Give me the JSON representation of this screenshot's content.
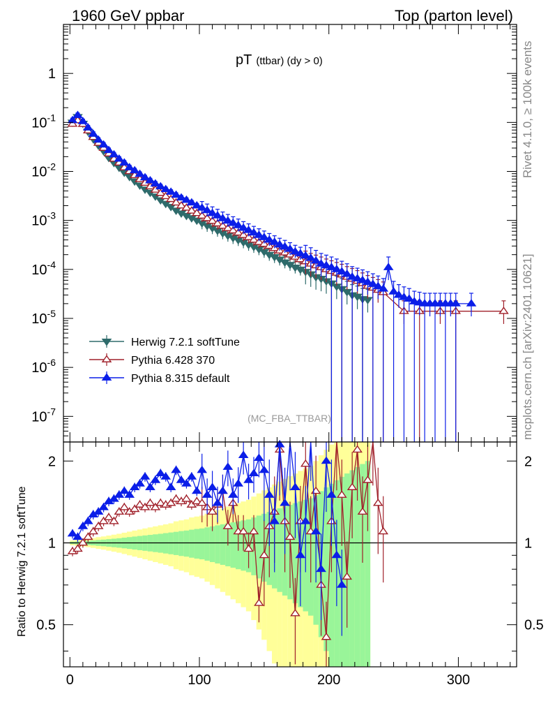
{
  "header": {
    "energy": "1960 GeV ppbar",
    "process": "Top (parton level)",
    "side_top": "Rivet 4.1.0, ≥ 100k events",
    "side_bottom": "mcplots.cern.ch [arXiv:2401.10621]"
  },
  "chart_data": [
    {
      "type": "line",
      "scale": "log",
      "title": "pT (ttbar) (dy > 0)",
      "title_main": "pT",
      "title_sub": "(ttbar) (dy > 0)",
      "analysis_tag": "(MC_FBA_TTBAR)",
      "ylim": [
        3e-08,
        10
      ],
      "xlim": [
        -5,
        345
      ],
      "y_tick_labels": [
        "1",
        "10^-1",
        "10^-2",
        "10^-3",
        "10^-4",
        "10^-5",
        "10^-6",
        "10^-7"
      ],
      "y_tick_values": [
        1,
        0.1,
        0.01,
        0.001,
        0.0001,
        1e-05,
        1e-06,
        1e-07
      ],
      "legend": [
        {
          "name": "Herwig 7.2.1 softTune",
          "color": "#2e6b6b",
          "marker": "triangle-down-filled"
        },
        {
          "name": "Pythia 6.428 370",
          "color": "#a0202a",
          "marker": "triangle-up-open"
        },
        {
          "name": "Pythia 8.315 default",
          "color": "#0b1ee8",
          "marker": "triangle-up-filled"
        }
      ],
      "series": [
        {
          "name": "Herwig 7.2.1 softTune",
          "color": "#2e6b6b",
          "x": [
            2,
            6,
            10,
            14,
            18,
            22,
            26,
            30,
            34,
            38,
            42,
            46,
            50,
            54,
            58,
            62,
            66,
            70,
            74,
            78,
            82,
            86,
            90,
            94,
            98,
            102,
            106,
            110,
            114,
            118,
            122,
            126,
            130,
            134,
            138,
            142,
            146,
            150,
            154,
            158,
            162,
            166,
            170,
            174,
            178,
            182,
            186,
            190,
            194,
            198,
            202,
            206,
            210,
            214,
            218,
            222,
            226,
            230
          ],
          "values": [
            0.1,
            0.13,
            0.095,
            0.065,
            0.046,
            0.034,
            0.026,
            0.019,
            0.015,
            0.012,
            0.0095,
            0.0078,
            0.0063,
            0.0052,
            0.0043,
            0.0037,
            0.0031,
            0.0026,
            0.0022,
            0.0019,
            0.0016,
            0.0014,
            0.00125,
            0.00112,
            0.001,
            0.00088,
            0.00078,
            0.0007,
            0.00062,
            0.00055,
            0.00049,
            0.00044,
            0.0004,
            0.00036,
            0.00032,
            0.00029,
            0.00026,
            0.00023,
            0.0002,
            0.00018,
            0.00016,
            0.00014,
            0.000125,
            0.00011,
            0.0001,
            9e-05,
            8e-05,
            7e-05,
            6.5e-05,
            5.8e-05,
            5.2e-05,
            4.5e-05,
            4e-05,
            3.5e-05,
            3e-05,
            2.8e-05,
            2.5e-05,
            2.4e-05
          ]
        },
        {
          "name": "Pythia 6.428 370",
          "color": "#a0202a",
          "x": [
            2,
            6,
            10,
            14,
            18,
            22,
            26,
            30,
            34,
            38,
            42,
            46,
            50,
            54,
            58,
            62,
            66,
            70,
            74,
            78,
            82,
            86,
            90,
            94,
            98,
            102,
            106,
            110,
            114,
            118,
            122,
            126,
            130,
            134,
            138,
            142,
            146,
            150,
            154,
            158,
            162,
            166,
            170,
            174,
            178,
            182,
            186,
            190,
            194,
            198,
            202,
            206,
            210,
            214,
            218,
            222,
            226,
            230,
            234,
            238,
            242,
            258,
            270,
            286,
            298,
            335
          ],
          "values": [
            0.093,
            0.11,
            0.092,
            0.068,
            0.05,
            0.038,
            0.03,
            0.023,
            0.018,
            0.015,
            0.012,
            0.01,
            0.0083,
            0.0069,
            0.0058,
            0.0049,
            0.0042,
            0.0036,
            0.0031,
            0.0027,
            0.0023,
            0.002,
            0.0018,
            0.00157,
            0.0014,
            0.00124,
            0.0011,
            0.00097,
            0.00086,
            0.00077,
            0.00069,
            0.00062,
            0.00056,
            0.0005,
            0.00045,
            0.0004,
            0.00036,
            0.00033,
            0.0003,
            0.00027,
            0.00024,
            0.00022,
            0.0002,
            0.00018,
            0.00016,
            0.000145,
            0.00013,
            0.00012,
            0.00011,
            0.0001,
            9.2e-05,
            8.5e-05,
            7.8e-05,
            7e-05,
            6.4e-05,
            5.8e-05,
            5.2e-05,
            4.6e-05,
            4.2e-05,
            3.8e-05,
            3.4e-05,
            1.4e-05,
            1.4e-05,
            1.4e-05,
            1.4e-05,
            1.4e-05
          ]
        },
        {
          "name": "Pythia 8.315 default",
          "color": "#0b1ee8",
          "x": [
            2,
            6,
            10,
            14,
            18,
            22,
            26,
            30,
            34,
            38,
            42,
            46,
            50,
            54,
            58,
            62,
            66,
            70,
            74,
            78,
            82,
            86,
            90,
            94,
            98,
            102,
            106,
            110,
            114,
            118,
            122,
            126,
            130,
            134,
            138,
            142,
            146,
            150,
            154,
            158,
            162,
            166,
            170,
            174,
            178,
            182,
            186,
            190,
            194,
            198,
            202,
            206,
            210,
            214,
            218,
            222,
            226,
            230,
            234,
            238,
            242,
            246,
            250,
            254,
            258,
            262,
            266,
            270,
            274,
            278,
            282,
            286,
            290,
            294,
            298,
            310
          ],
          "values": [
            0.11,
            0.14,
            0.105,
            0.078,
            0.058,
            0.044,
            0.035,
            0.027,
            0.022,
            0.018,
            0.015,
            0.012,
            0.0104,
            0.0088,
            0.0075,
            0.0065,
            0.0056,
            0.0049,
            0.0043,
            0.0038,
            0.0033,
            0.0029,
            0.0026,
            0.0023,
            0.002,
            0.0018,
            0.0016,
            0.0014,
            0.00125,
            0.0011,
            0.00098,
            0.00088,
            0.00079,
            0.0007,
            0.00063,
            0.00056,
            0.0005,
            0.00045,
            0.0004,
            0.00036,
            0.00032,
            0.00029,
            0.00026,
            0.00023,
            0.00021,
            0.00019,
            0.00017,
            0.00015,
            0.00013,
            0.00012,
            0.00011,
            0.0001,
            9e-05,
            8e-05,
            7e-05,
            6.5e-05,
            6e-05,
            5.5e-05,
            5e-05,
            4.5e-05,
            4e-05,
            0.00011,
            3.5e-05,
            3e-05,
            2.7e-05,
            2.5e-05,
            2.2e-05,
            2.1e-05,
            2e-05,
            2e-05,
            2e-05,
            2e-05,
            2e-05,
            2e-05,
            2e-05,
            2e-05
          ]
        }
      ]
    },
    {
      "type": "line",
      "scale": "log",
      "ylabel": "Ratio to Herwig 7.2.1 softTune",
      "ylim": [
        0.35,
        2.35
      ],
      "xlim": [
        -5,
        345
      ],
      "y_tick_labels": [
        "2",
        "1",
        "0.5"
      ],
      "y_tick_values": [
        2,
        1,
        0.5
      ],
      "x_tick_labels": [
        "0",
        "100",
        "200",
        "300"
      ],
      "x_tick_values": [
        0,
        100,
        200,
        300
      ],
      "reference": 1,
      "band_green_halfwidth": [
        0.01,
        0.012,
        0.015,
        0.018,
        0.021,
        0.025,
        0.028,
        0.032,
        0.036,
        0.04,
        0.045,
        0.05,
        0.055,
        0.06,
        0.065,
        0.07,
        0.075,
        0.08,
        0.086,
        0.092,
        0.098,
        0.105,
        0.11,
        0.118,
        0.125,
        0.13,
        0.14,
        0.15,
        0.16,
        0.17,
        0.18,
        0.19,
        0.2,
        0.21,
        0.22,
        0.24,
        0.26,
        0.28,
        0.3,
        0.32,
        0.34,
        0.36,
        0.38,
        0.4,
        0.42,
        0.44,
        0.46,
        0.5,
        0.55,
        0.6,
        0.65,
        0.7,
        0.75,
        0.8,
        0.85,
        0.9,
        0.95,
        1.0
      ],
      "band_yellow_halfwidth": [
        0.02,
        0.025,
        0.03,
        0.036,
        0.042,
        0.05,
        0.056,
        0.064,
        0.072,
        0.08,
        0.09,
        0.1,
        0.11,
        0.12,
        0.13,
        0.14,
        0.15,
        0.16,
        0.17,
        0.18,
        0.2,
        0.21,
        0.22,
        0.24,
        0.25,
        0.26,
        0.28,
        0.3,
        0.32,
        0.34,
        0.36,
        0.38,
        0.4,
        0.42,
        0.44,
        0.48,
        0.52,
        0.56,
        0.6,
        0.64,
        0.68,
        0.72,
        0.76,
        0.8,
        0.84,
        0.88,
        0.92,
        1.0,
        1.1,
        1.2,
        1.3,
        1.4,
        1.5,
        1.6,
        1.7,
        1.8,
        1.9,
        2.0
      ],
      "series": [
        {
          "name": "Pythia 6.428 370",
          "color": "#a0202a",
          "x": [
            2,
            6,
            10,
            14,
            18,
            22,
            26,
            30,
            34,
            38,
            42,
            46,
            50,
            54,
            58,
            62,
            66,
            70,
            74,
            78,
            82,
            86,
            90,
            94,
            98,
            102,
            106,
            110,
            114,
            118,
            122,
            126,
            130,
            134,
            138,
            142,
            146,
            150,
            154,
            158,
            162,
            166,
            170,
            174,
            178,
            182,
            186,
            190,
            194,
            198,
            202,
            206,
            210,
            214,
            218,
            222,
            226,
            230,
            234,
            238,
            242
          ],
          "values": [
            0.93,
            0.95,
            1.0,
            1.05,
            1.1,
            1.15,
            1.2,
            1.24,
            1.2,
            1.3,
            1.35,
            1.3,
            1.33,
            1.38,
            1.35,
            1.4,
            1.35,
            1.4,
            1.38,
            1.4,
            1.45,
            1.42,
            1.45,
            1.38,
            1.42,
            1.4,
            1.35,
            1.3,
            1.38,
            1.55,
            1.15,
            1.4,
            1.1,
            1.1,
            0.95,
            1.1,
            0.6,
            0.9,
            1.15,
            1.3,
            2.2,
            1.2,
            1.05,
            0.55,
            1.2,
            1.95,
            1.1,
            1.55,
            0.7,
            0.45,
            1.2,
            2.4,
            1.5,
            0.75,
            1.6,
            2.2,
            1.3,
            1.7,
            2.5,
            1.4,
            1.1
          ]
        },
        {
          "name": "Pythia 8.315 default",
          "color": "#0b1ee8",
          "x": [
            2,
            6,
            10,
            14,
            18,
            22,
            26,
            30,
            34,
            38,
            42,
            46,
            50,
            54,
            58,
            62,
            66,
            70,
            74,
            78,
            82,
            86,
            90,
            94,
            98,
            102,
            106,
            110,
            114,
            118,
            122,
            126,
            130,
            134,
            138,
            142,
            146,
            150,
            154,
            158,
            162,
            166,
            170,
            174,
            178,
            182,
            186,
            190,
            194,
            198,
            202,
            206,
            210
          ],
          "values": [
            1.08,
            1.05,
            1.15,
            1.2,
            1.27,
            1.3,
            1.35,
            1.42,
            1.45,
            1.5,
            1.55,
            1.5,
            1.6,
            1.65,
            1.75,
            1.6,
            1.7,
            1.8,
            1.75,
            1.6,
            1.85,
            1.7,
            1.65,
            1.75,
            1.55,
            1.85,
            1.5,
            1.6,
            1.4,
            1.55,
            1.9,
            1.5,
            1.65,
            2.1,
            1.7,
            1.8,
            2.05,
            1.85,
            1.5,
            1.2,
            2.3,
            1.4,
            2.4,
            1.6,
            0.9,
            1.2,
            2.6,
            1.1,
            0.8,
            2.0,
            1.5,
            0.9,
            0.7
          ]
        }
      ]
    }
  ]
}
